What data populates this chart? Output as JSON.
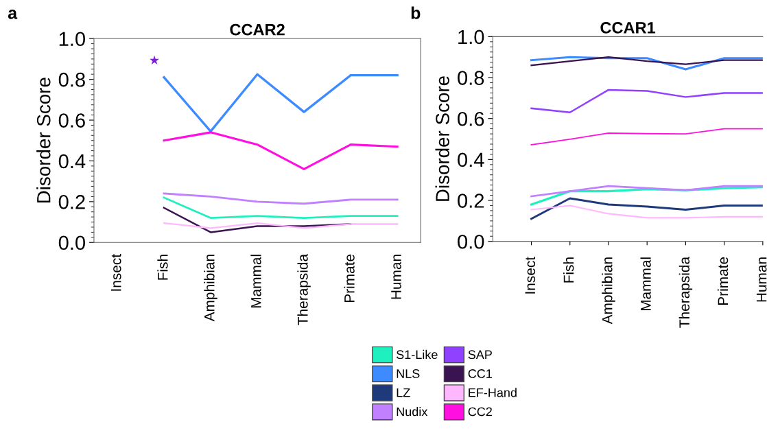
{
  "chart_data": [
    {
      "type": "line",
      "title": "CCAR2",
      "ylabel": "Disorder Score",
      "categories": [
        "Insect",
        "Fish",
        "Amphibian",
        "Mammal",
        "Therapsida",
        "Primate",
        "Human"
      ],
      "ylim": [
        0,
        1
      ],
      "yticks": [
        {
          "value": 0,
          "label": "0.0"
        },
        {
          "value": 0.2,
          "label": "0.2"
        },
        {
          "value": 0.4,
          "label": "0.4"
        },
        {
          "value": 0.6,
          "label": "0.6"
        },
        {
          "value": 0.8,
          "label": "0.8"
        },
        {
          "value": 1,
          "label": "1.0"
        }
      ],
      "grid": false,
      "legend": "bottom",
      "annotations": [
        "a",
        "★"
      ],
      "series": [
        {
          "name": "NLS",
          "color": "#3d8bff",
          "values": [
            null,
            0.81,
            0.545,
            0.825,
            0.64,
            0.82,
            0.82
          ]
        },
        {
          "name": "CC2",
          "color": "#ff10e0",
          "values": [
            null,
            0.5,
            0.54,
            0.48,
            0.36,
            0.48,
            0.47
          ]
        },
        {
          "name": "Nudix",
          "color": "#c080ff",
          "values": [
            null,
            0.24,
            0.225,
            0.2,
            0.19,
            0.21,
            0.21
          ]
        },
        {
          "name": "S1-Like",
          "color": "#1ef0c0",
          "values": [
            null,
            0.22,
            0.12,
            0.13,
            0.12,
            0.13,
            0.13
          ]
        },
        {
          "name": "CC1",
          "color": "#3a1450",
          "values": [
            null,
            0.17,
            0.05,
            0.08,
            0.08,
            0.09,
            null
          ]
        },
        {
          "name": "EF-Hand",
          "color": "#ffb8ff",
          "values": [
            null,
            0.095,
            0.07,
            0.095,
            0.07,
            0.09,
            0.09
          ]
        }
      ]
    },
    {
      "type": "line",
      "title": "CCAR1",
      "ylabel": "Disorder Score",
      "categories": [
        "Insect",
        "Fish",
        "Amphibian",
        "Mammal",
        "Therapsida",
        "Primate",
        "Human"
      ],
      "ylim": [
        0,
        1
      ],
      "yticks": [
        {
          "value": 0,
          "label": "0.0"
        },
        {
          "value": 0.2,
          "label": "0.2"
        },
        {
          "value": 0.4,
          "label": "0.4"
        },
        {
          "value": 0.6,
          "label": "0.6"
        },
        {
          "value": 0.8,
          "label": "0.8"
        },
        {
          "value": 1,
          "label": "1.0"
        }
      ],
      "grid": false,
      "legend": "bottom",
      "annotations": [
        "b"
      ],
      "series": [
        {
          "name": "S1-Like",
          "color": "#1ef0c0",
          "values": [
            0.18,
            0.245,
            0.245,
            0.255,
            0.25,
            0.26,
            0.265
          ]
        },
        {
          "name": "NLS",
          "color": "#3d8bff",
          "values": [
            0.885,
            0.9,
            0.895,
            0.895,
            0.84,
            0.895,
            0.895
          ]
        },
        {
          "name": "LZ",
          "color": "#1f3a7a",
          "values": [
            0.11,
            0.21,
            0.18,
            0.17,
            0.155,
            0.175,
            0.175
          ]
        },
        {
          "name": "Nudix",
          "color": "#c080ff",
          "values": [
            0.22,
            0.245,
            0.27,
            0.26,
            0.25,
            0.27,
            0.27
          ]
        },
        {
          "name": "SAP",
          "color": "#9040ff",
          "values": [
            0.65,
            0.63,
            0.74,
            0.735,
            0.705,
            0.725,
            0.725
          ]
        },
        {
          "name": "CC1",
          "color": "#3a1450",
          "values": [
            0.86,
            0.88,
            0.9,
            0.88,
            0.865,
            0.885,
            0.885
          ]
        },
        {
          "name": "EF-Hand",
          "color": "#ffb8ff",
          "values": [
            0.155,
            0.175,
            0.135,
            0.115,
            0.115,
            0.12,
            0.12
          ]
        },
        {
          "name": "CC2",
          "color": "#ff10e0",
          "values": [
            0.472,
            0.499,
            0.529,
            0.526,
            0.525,
            0.55,
            0.55
          ]
        }
      ]
    }
  ]
}
